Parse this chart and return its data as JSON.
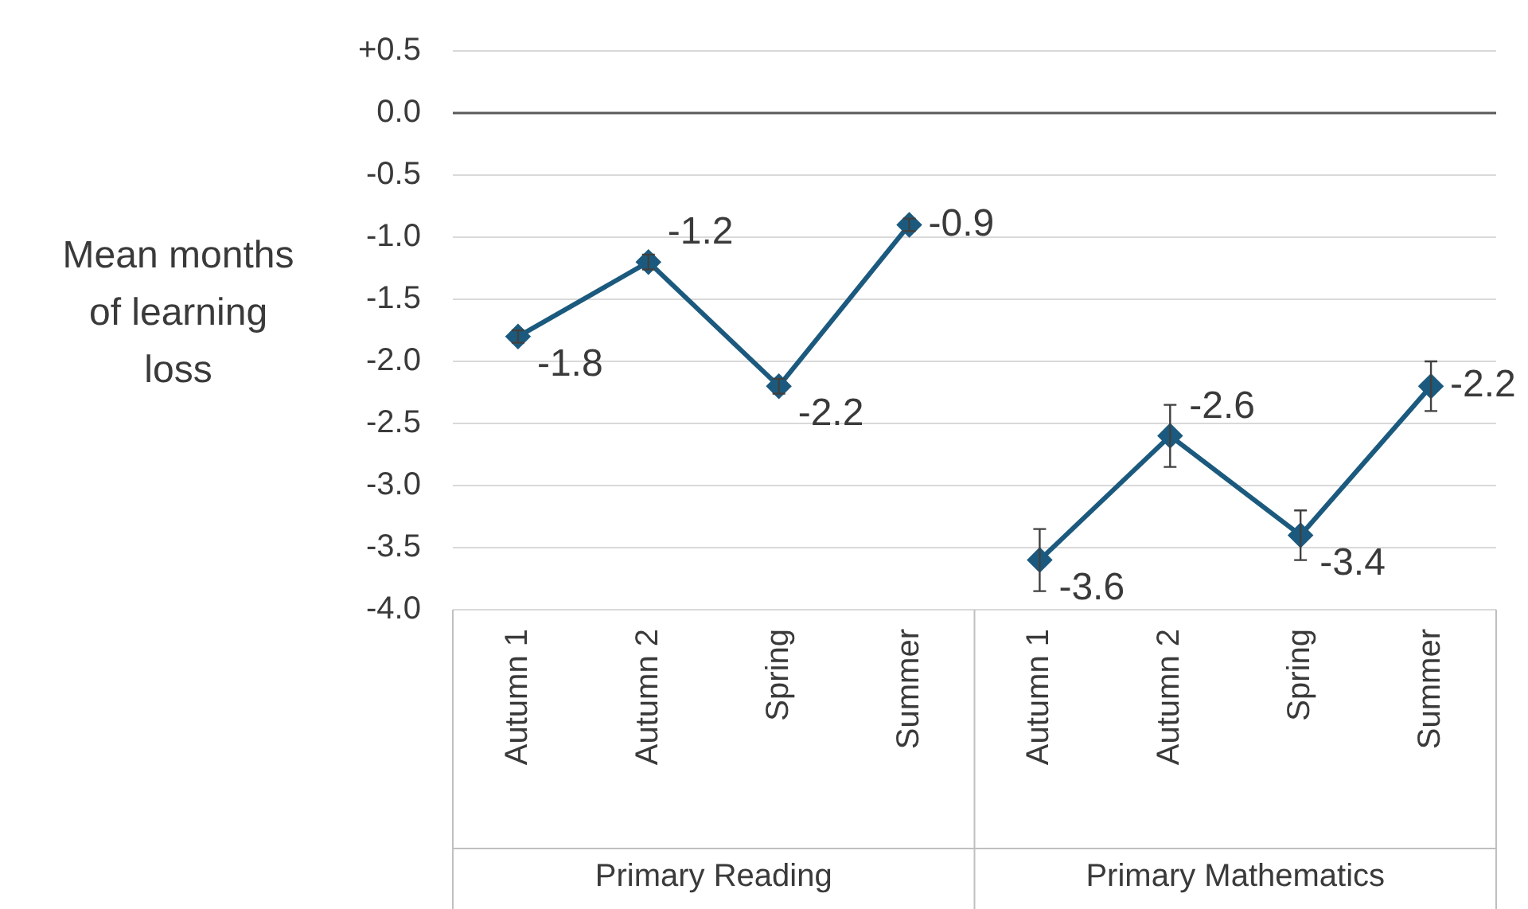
{
  "chart_data": {
    "type": "line",
    "ylabel": "Mean months of learning loss",
    "categories": [
      "Autumn 1",
      "Autumn 2",
      "Spring",
      "Summer",
      "Autumn 1",
      "Autumn 2",
      "Spring",
      "Summer"
    ],
    "series": [
      {
        "color": "#1b5a7e",
        "values": [
          -1.8,
          -1.2,
          -2.2,
          -0.9,
          null,
          null,
          null,
          null
        ],
        "errors": [
          0.05,
          0.06,
          0.06,
          0.05,
          null,
          null,
          null,
          null
        ]
      },
      {
        "color": "#1b5a7e",
        "values": [
          null,
          null,
          null,
          null,
          -3.6,
          -2.6,
          -3.4,
          -2.2
        ],
        "errors": [
          null,
          null,
          null,
          null,
          0.25,
          0.25,
          0.2,
          0.2
        ]
      }
    ],
    "ylim": [
      -4,
      0.5
    ],
    "yticks": [
      {
        "value": 0.5,
        "label": "+0.5"
      },
      {
        "value": 0,
        "label": "0.0"
      },
      {
        "value": -0.5,
        "label": "-0.5"
      },
      {
        "value": -1,
        "label": "-1.0"
      },
      {
        "value": -1.5,
        "label": "-1.5"
      },
      {
        "value": -2,
        "label": "-2.0"
      },
      {
        "value": -2.5,
        "label": "-2.5"
      },
      {
        "value": -3,
        "label": "-3.0"
      },
      {
        "value": -3.5,
        "label": "-3.5"
      },
      {
        "value": -4,
        "label": "-4.0"
      }
    ],
    "annotations": [
      "Primary Reading",
      "Primary Mathematics"
    ],
    "ref_lines": [
      {
        "axis": "y",
        "value": 0,
        "color": "#595959"
      }
    ],
    "grid": "y",
    "legend": false,
    "marker": "diamond",
    "line_style": "solid",
    "data_labels": true
  }
}
